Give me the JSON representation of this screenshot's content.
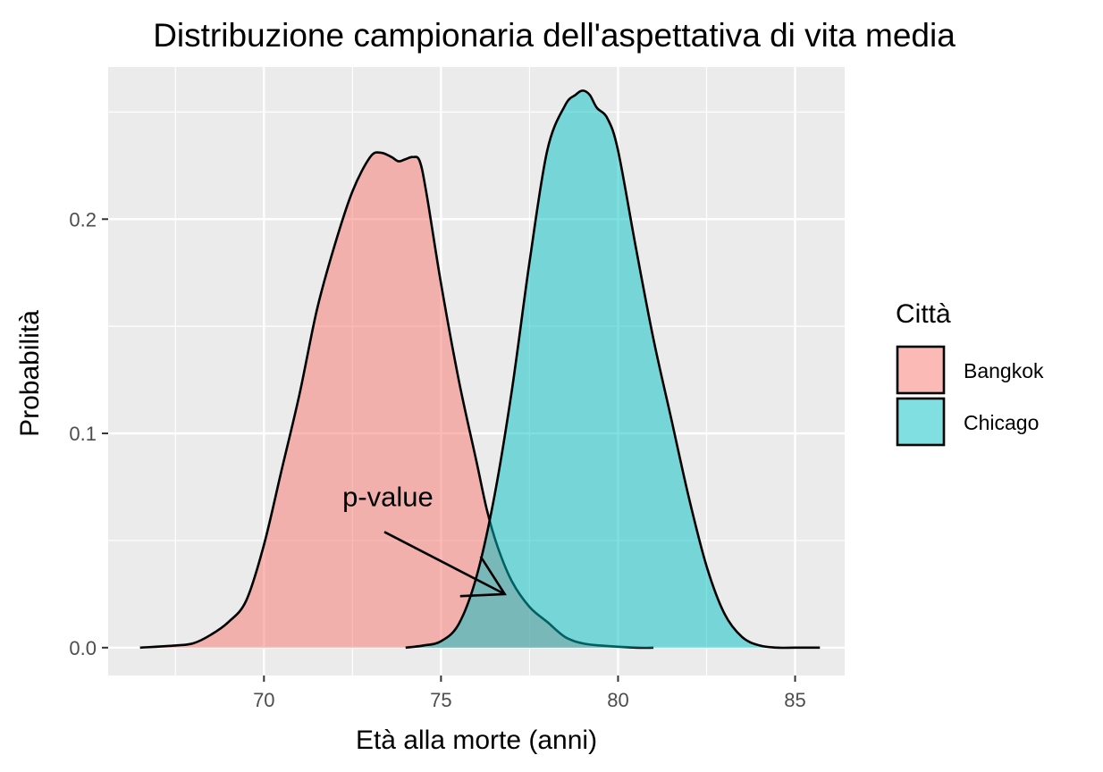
{
  "chart_data": {
    "type": "area",
    "title": "Distribuzione campionaria dell'aspettativa di vita media",
    "xlabel": "Età alla morte (anni)",
    "ylabel": "Probabilità",
    "xlim": [
      65.6,
      86.4
    ],
    "ylim": [
      -0.013,
      0.271
    ],
    "x_ticks": [
      70,
      75,
      80,
      85
    ],
    "y_ticks": [
      0.0,
      0.1,
      0.2
    ],
    "x_tick_labels": [
      "70",
      "75",
      "80",
      "85"
    ],
    "y_tick_labels": [
      "0.0",
      "0.1",
      "0.2"
    ],
    "grid": true,
    "legend_position": "right",
    "legend_title": "Città",
    "series": [
      {
        "name": "Bangkok",
        "color": "#F8766D",
        "x": [
          66.5,
          67.5,
          68.0,
          68.5,
          69.0,
          69.5,
          70.0,
          70.5,
          71.0,
          71.5,
          72.0,
          72.5,
          73.0,
          73.3,
          73.6,
          73.8,
          74.0,
          74.2,
          74.4,
          74.6,
          75.0,
          75.5,
          76.0,
          76.3,
          76.6,
          77.0,
          77.5,
          78.0,
          78.5,
          79.0,
          79.5,
          80.5,
          81.0
        ],
        "values": [
          0.0,
          0.001,
          0.002,
          0.006,
          0.012,
          0.022,
          0.048,
          0.083,
          0.118,
          0.158,
          0.188,
          0.213,
          0.229,
          0.231,
          0.229,
          0.227,
          0.228,
          0.229,
          0.227,
          0.211,
          0.17,
          0.125,
          0.087,
          0.064,
          0.047,
          0.031,
          0.019,
          0.012,
          0.005,
          0.002,
          0.001,
          0.0,
          0.0
        ]
      },
      {
        "name": "Chicago",
        "color": "#00BFC4",
        "x": [
          74.0,
          74.5,
          75.0,
          75.5,
          76.0,
          76.5,
          77.0,
          77.5,
          78.0,
          78.5,
          78.8,
          79.0,
          79.2,
          79.4,
          79.7,
          80.0,
          80.5,
          81.0,
          81.5,
          82.0,
          82.5,
          83.0,
          83.5,
          84.0,
          84.5,
          85.0,
          85.7
        ],
        "values": [
          0.0,
          0.001,
          0.003,
          0.011,
          0.033,
          0.07,
          0.12,
          0.18,
          0.232,
          0.253,
          0.258,
          0.26,
          0.258,
          0.252,
          0.247,
          0.232,
          0.187,
          0.144,
          0.107,
          0.07,
          0.038,
          0.016,
          0.005,
          0.001,
          0.0,
          0.0,
          0.0
        ]
      }
    ],
    "annotations": [
      {
        "text": "p-value",
        "x": 73.5,
        "y": 0.066,
        "arrow_from": [
          73.4,
          0.054
        ],
        "arrow_to": [
          76.8,
          0.025
        ]
      }
    ]
  }
}
